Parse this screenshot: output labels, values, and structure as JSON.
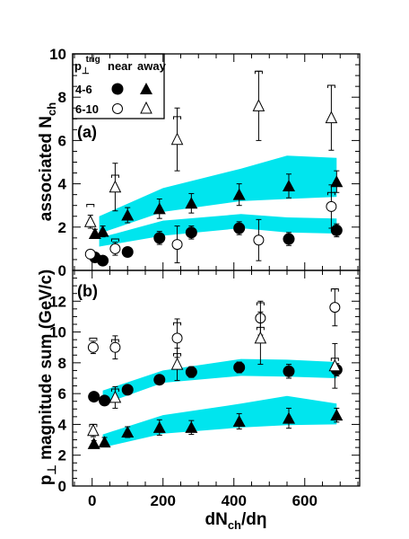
{
  "colors": {
    "band": "#00e5ee",
    "ink": "#000000",
    "background": "#ffffff"
  },
  "legend": {
    "header_main": "p",
    "header_sub": "⊥",
    "header_sup": "trig",
    "col_near": "near",
    "col_away": "away",
    "rows": [
      "4-6",
      "6-10"
    ]
  },
  "x_axis": {
    "label_main": "dN",
    "label_sub": "ch",
    "label_tail": "/dη",
    "range": [
      -55,
      755
    ],
    "ticks": [
      0,
      200,
      400,
      600
    ]
  },
  "chart_data": [
    {
      "type": "scatter",
      "panel": "(a)",
      "ylabel_main": "associated N",
      "ylabel_sub": "ch",
      "ylim": [
        0,
        10
      ],
      "yticks": [
        0,
        2,
        4,
        6,
        8,
        10
      ],
      "bands": [
        {
          "name": "4-6 near band",
          "x": [
            20,
            200,
            420,
            550,
            690
          ],
          "low": [
            1.1,
            1.6,
            1.95,
            1.75,
            1.7
          ],
          "high": [
            1.5,
            2.3,
            2.6,
            2.45,
            2.4
          ]
        },
        {
          "name": "4-6 away band",
          "x": [
            20,
            200,
            420,
            550,
            690
          ],
          "low": [
            1.7,
            2.7,
            3.2,
            3.3,
            3.4
          ],
          "high": [
            2.5,
            3.8,
            4.7,
            5.3,
            5.2
          ]
        }
      ],
      "series": [
        {
          "name": "4-6 near",
          "marker": "filled-circle",
          "x": [
            8,
            30,
            100,
            190,
            280,
            415,
            555,
            690
          ],
          "y": [
            0.6,
            0.45,
            0.85,
            1.5,
            1.75,
            1.95,
            1.45,
            1.85
          ],
          "err": [
            0.15,
            0.1,
            0.2,
            0.3,
            0.3,
            0.3,
            0.3,
            0.3
          ]
        },
        {
          "name": "4-6 away",
          "marker": "filled-triangle",
          "x": [
            8,
            30,
            100,
            190,
            280,
            415,
            555,
            690
          ],
          "y": [
            1.7,
            1.8,
            2.55,
            2.85,
            3.1,
            3.5,
            3.9,
            4.1
          ],
          "err": [
            0.2,
            0.25,
            0.35,
            0.45,
            0.45,
            0.5,
            0.55,
            0.5
          ]
        },
        {
          "name": "6-10 near",
          "marker": "open-circle",
          "x": [
            -5,
            65,
            240,
            470,
            675
          ],
          "y": [
            0.75,
            1.0,
            1.2,
            1.4,
            2.95
          ],
          "err": [
            0.2,
            0.3,
            0.85,
            0.95,
            1.0
          ]
        },
        {
          "name": "6-10 away",
          "marker": "open-triangle",
          "x": [
            -5,
            65,
            240,
            470,
            675
          ],
          "y": [
            2.25,
            3.85,
            6.05,
            7.6,
            7.05
          ],
          "err": [
            0.3,
            1.1,
            1.45,
            1.6,
            1.5
          ]
        }
      ],
      "sys_brackets": {
        "6-10 near": [
          0.9,
          1.45,
          1.35,
          1.4,
          3.6
        ],
        "6-10 away": [
          3.05,
          4.4,
          7.1,
          9.2,
          8.55
        ]
      }
    },
    {
      "type": "scatter",
      "panel": "(b)",
      "ylabel_main": "p",
      "ylabel_sub": "⊥",
      "ylabel_tail": " magnitude sum (GeV/c)",
      "ylim": [
        0,
        14
      ],
      "yticks": [
        0,
        2,
        4,
        6,
        8,
        10,
        12
      ],
      "bands": [
        {
          "name": "4-6 near band",
          "x": [
            30,
            200,
            420,
            550,
            690
          ],
          "low": [
            5.3,
            6.7,
            7.15,
            7.1,
            7.0
          ],
          "high": [
            6.2,
            7.5,
            8.25,
            8.2,
            8.05
          ]
        },
        {
          "name": "4-6 away band",
          "x": [
            30,
            200,
            420,
            550,
            690
          ],
          "low": [
            2.5,
            3.4,
            3.8,
            3.95,
            4.0
          ],
          "high": [
            3.35,
            4.6,
            5.35,
            5.85,
            5.35
          ]
        }
      ],
      "series": [
        {
          "name": "4-6 near",
          "marker": "filled-circle",
          "x": [
            5,
            35,
            100,
            190,
            280,
            415,
            555,
            690
          ],
          "y": [
            5.8,
            5.55,
            6.25,
            6.9,
            7.4,
            7.7,
            7.45,
            7.55
          ],
          "err": [
            0.15,
            0.25,
            0.3,
            0.3,
            0.35,
            0.35,
            0.45,
            0.4
          ]
        },
        {
          "name": "4-6 away",
          "marker": "filled-triangle",
          "x": [
            5,
            35,
            100,
            190,
            280,
            415,
            555,
            690
          ],
          "y": [
            2.75,
            2.85,
            3.5,
            3.8,
            3.8,
            4.2,
            4.4,
            4.6
          ],
          "err": [
            0.2,
            0.3,
            0.35,
            0.5,
            0.45,
            0.5,
            0.65,
            0.45
          ]
        },
        {
          "name": "6-10 near",
          "marker": "open-circle",
          "x": [
            3,
            65,
            240,
            475,
            685
          ],
          "y": [
            9.0,
            9.0,
            9.6,
            10.9,
            11.6
          ],
          "err": [
            0.4,
            0.75,
            1.25,
            1.1,
            1.2
          ]
        },
        {
          "name": "6-10 away",
          "marker": "open-triangle",
          "x": [
            3,
            65,
            240,
            475,
            685
          ],
          "y": [
            3.6,
            5.75,
            7.9,
            9.6,
            7.8
          ],
          "err": [
            0.4,
            0.7,
            1.05,
            1.7,
            1.45
          ]
        }
      ],
      "sys_brackets": {
        "6-10 near": [
          9.6,
          9.5,
          10.6,
          11.9,
          12.8
        ],
        "6-10 away": [
          4.0,
          6.3,
          8.6,
          10.3,
          8.3
        ]
      }
    }
  ]
}
